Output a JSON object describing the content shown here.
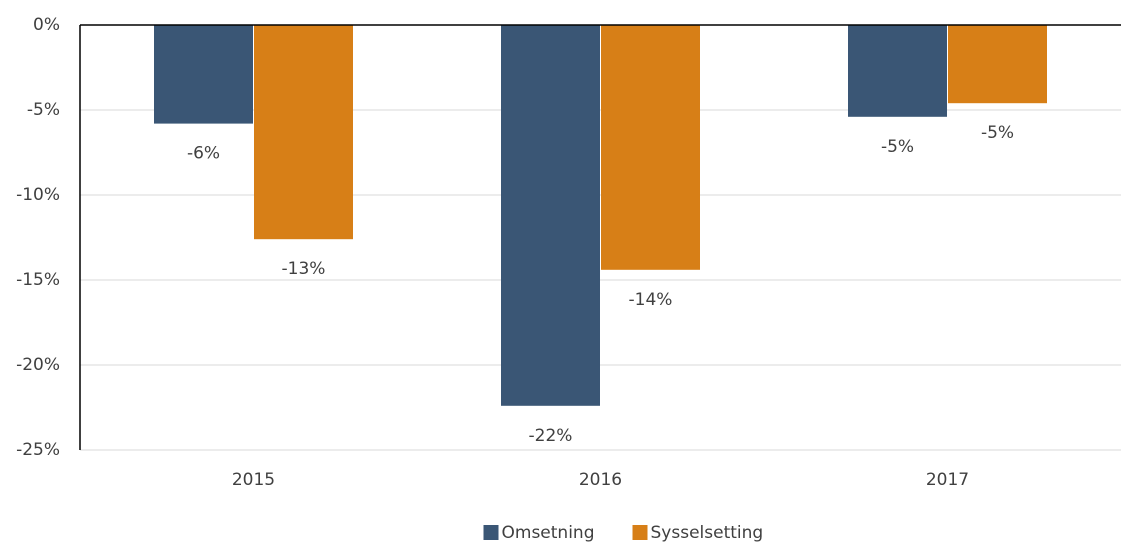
{
  "chart_data": {
    "type": "bar",
    "categories": [
      "2015",
      "2016",
      "2017"
    ],
    "series": [
      {
        "name": "Omsetning",
        "color": "#3a5675",
        "values": [
          -5.8,
          -22.4,
          -5.4
        ],
        "value_labels": [
          "-6%",
          "-22%",
          "-5%"
        ]
      },
      {
        "name": "Sysselsetting",
        "color": "#d77f17",
        "values": [
          -12.6,
          -14.4,
          -4.6
        ],
        "value_labels": [
          "-13%",
          "-14%",
          "-5%"
        ]
      }
    ],
    "ylim": [
      -25,
      0
    ],
    "yticks": [
      {
        "value": 0,
        "label": "0%"
      },
      {
        "value": -5,
        "label": "-5%"
      },
      {
        "value": -10,
        "label": "-10%"
      },
      {
        "value": -15,
        "label": "-15%"
      },
      {
        "value": -20,
        "label": "-20%"
      },
      {
        "value": -25,
        "label": "-25%"
      }
    ],
    "grid": true,
    "legend": "bottom"
  }
}
